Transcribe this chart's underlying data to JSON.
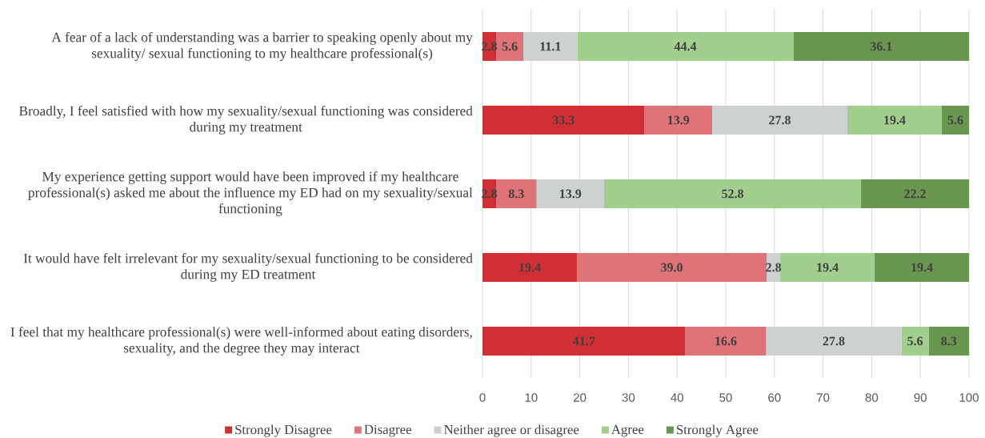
{
  "chart_data": {
    "type": "bar",
    "orientation": "horizontal",
    "stacked": true,
    "categories": [
      "A fear of a lack of understanding was a barrier to speaking openly about my sexuality/ sexual functioning to my healthcare professional(s)",
      "Broadly, I feel satisfied with how my sexuality/sexual functioning was considered during my treatment",
      "My experience getting support would have been improved if my healthcare professional(s) asked me about the influence my ED had on my sexuality/sexual functioning",
      "It would have felt irrelevant for my sexuality/sexual functioning to be considered during my ED treatment",
      "I feel that my healthcare professional(s) were well-informed about eating disorders, sexuality, and the degree they may interact"
    ],
    "series": [
      {
        "name": "Strongly Disagree",
        "color": "#d03035",
        "values": [
          2.8,
          33.3,
          2.8,
          19.4,
          41.7
        ],
        "value_labels": [
          "2.8",
          "33.3",
          "2.8",
          "19.4",
          "41.7"
        ]
      },
      {
        "name": "Disagree",
        "color": "#e07378",
        "values": [
          5.6,
          13.9,
          8.3,
          39.0,
          16.6
        ],
        "value_labels": [
          "5.6",
          "13.9",
          "8.3",
          "39.0",
          "16.6"
        ]
      },
      {
        "name": "Neither agree or disagree",
        "color": "#cdd1d2",
        "values": [
          11.1,
          27.8,
          13.9,
          2.8,
          27.8
        ],
        "value_labels": [
          "11.1",
          "27.8",
          "13.9",
          "2.8",
          "27.8"
        ]
      },
      {
        "name": "Agree",
        "color": "#a3cf8e",
        "values": [
          44.4,
          19.4,
          52.8,
          19.4,
          5.6
        ],
        "value_labels": [
          "44.4",
          "19.4",
          "52.8",
          "19.4",
          "5.6"
        ]
      },
      {
        "name": "Strongly Agree",
        "color": "#6a974f",
        "values": [
          36.1,
          5.6,
          22.2,
          19.4,
          8.3
        ],
        "value_labels": [
          "36.1",
          "5.6",
          "22.2",
          "19.4",
          "8.3"
        ]
      }
    ],
    "xlim": [
      0,
      100
    ],
    "xticks": [
      0,
      10,
      20,
      30,
      40,
      50,
      60,
      70,
      80,
      90,
      100
    ],
    "grid": "x",
    "legend": "bottom"
  }
}
